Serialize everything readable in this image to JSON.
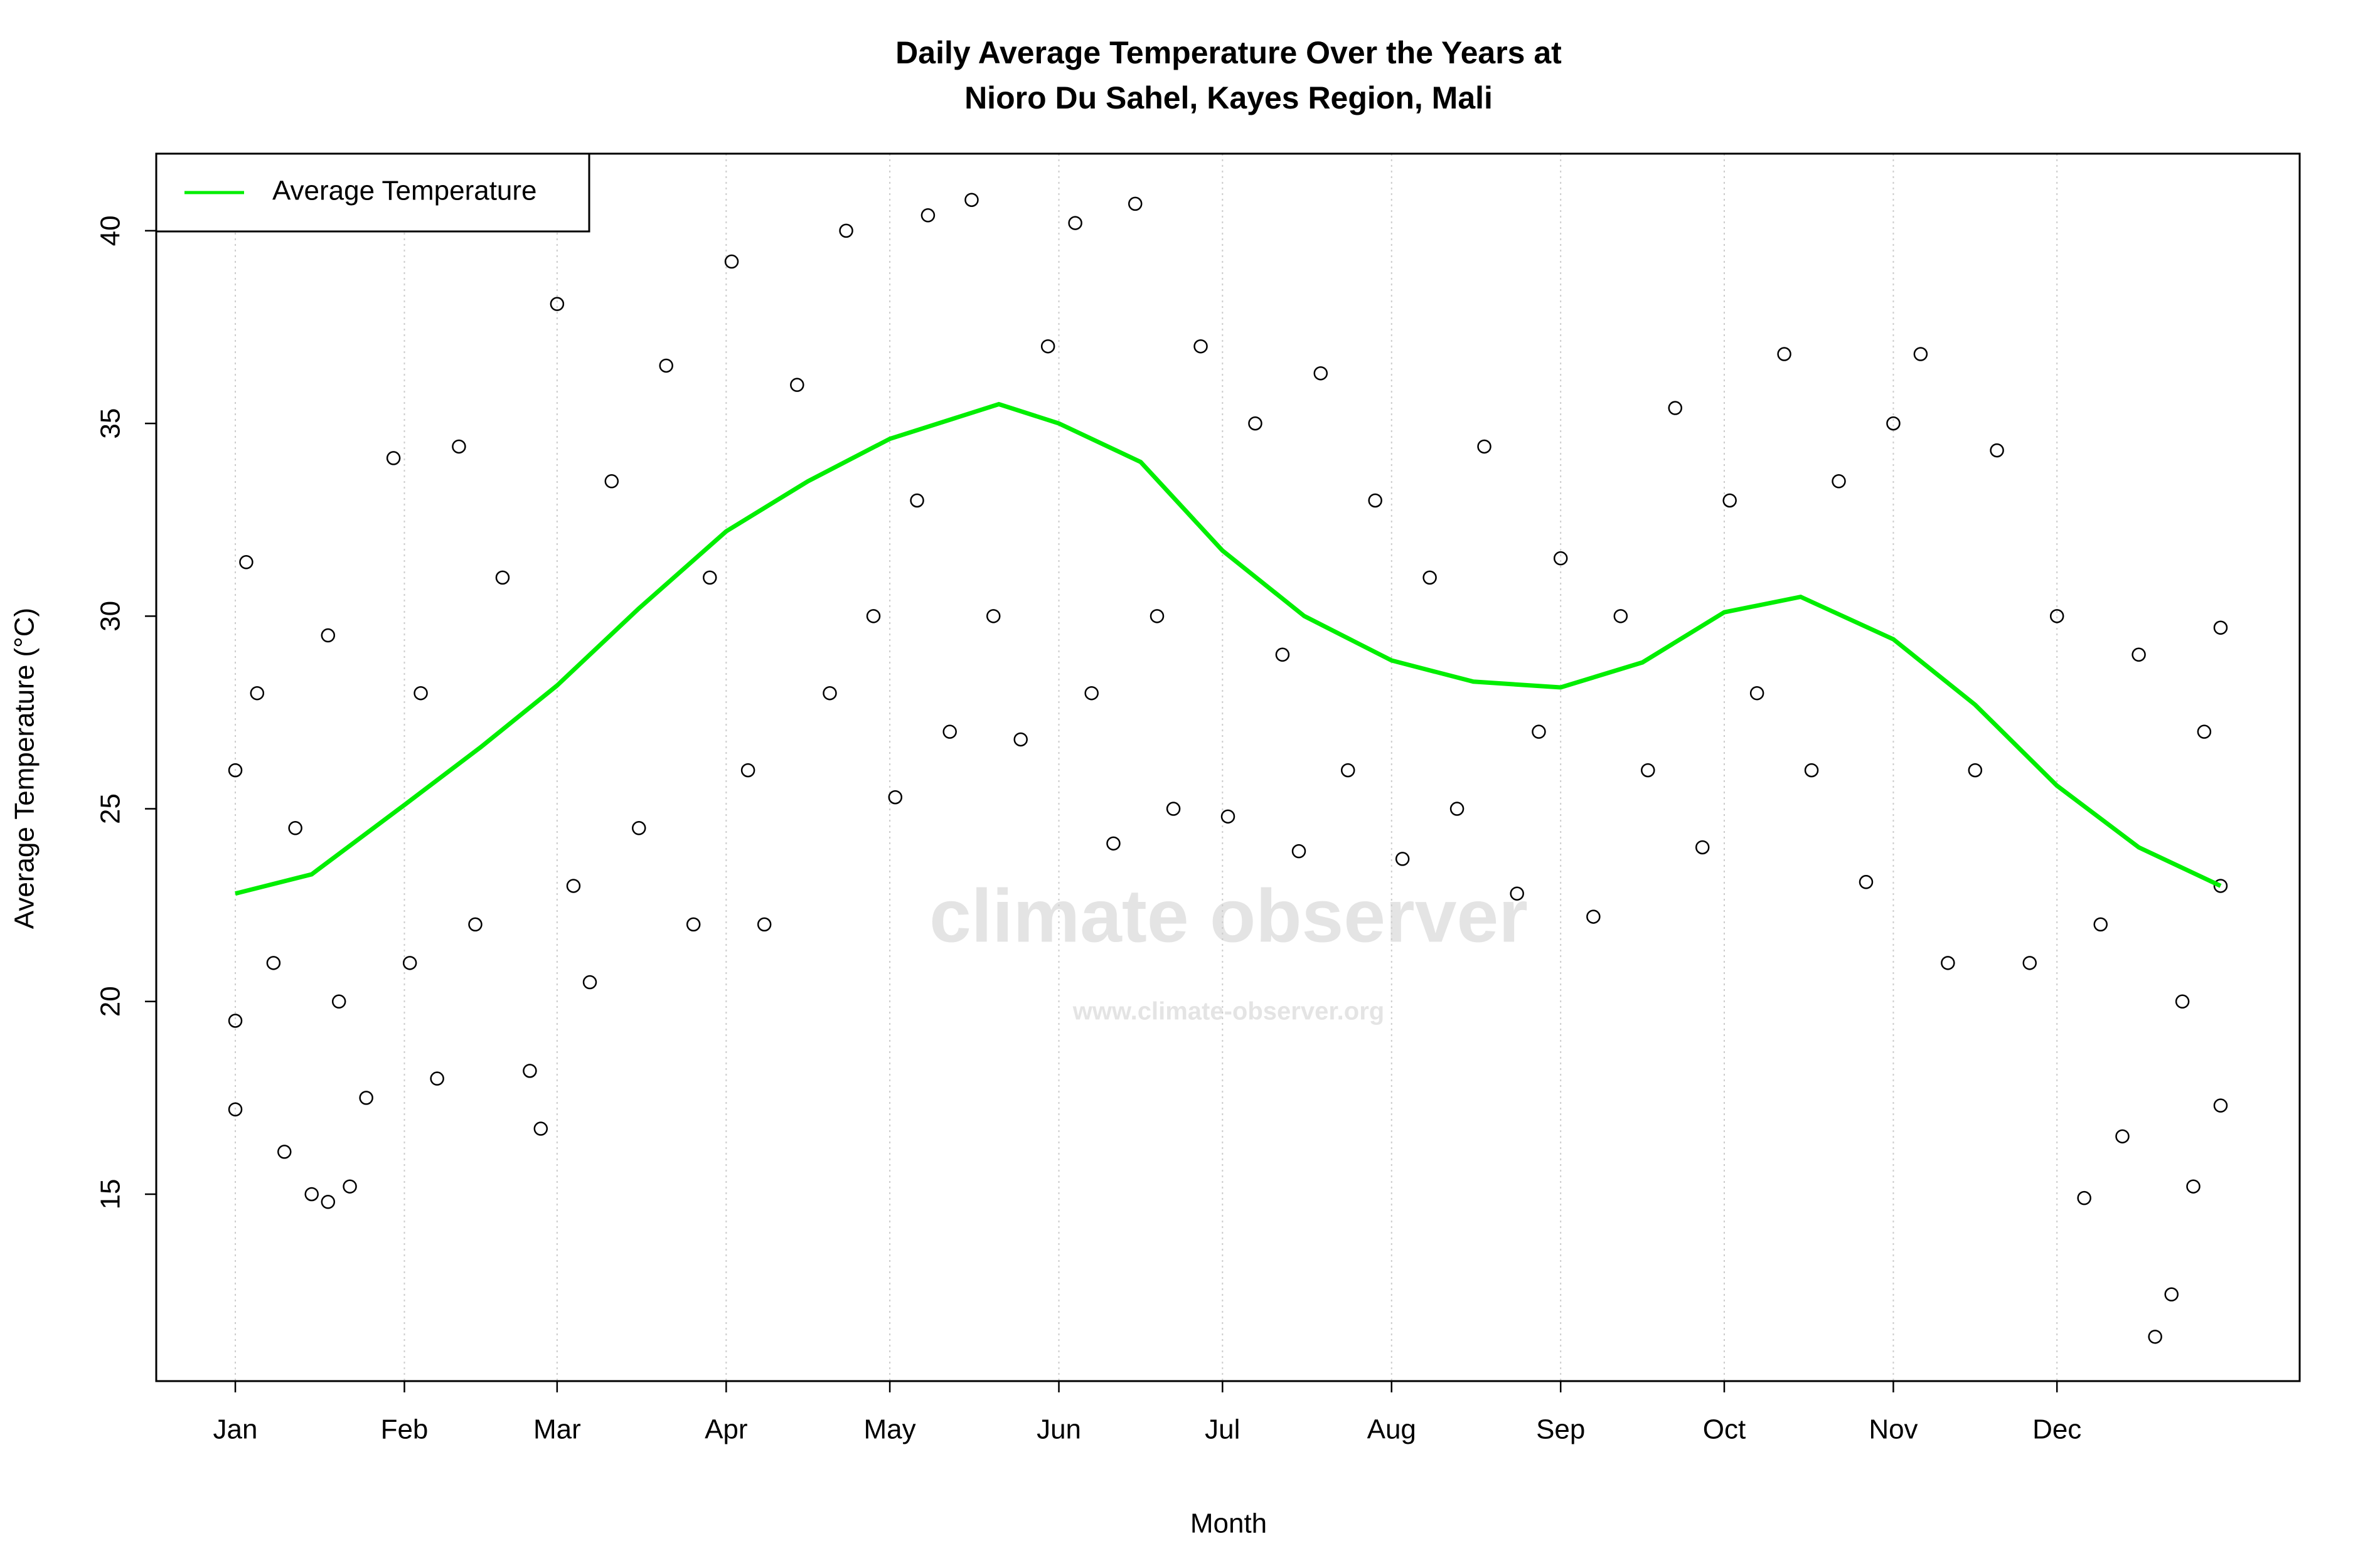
{
  "chart_data": {
    "type": "scatter",
    "title": [
      "Daily Average Temperature Over the Years at",
      "Nioro Du Sahel, Kayes Region, Mali"
    ],
    "x_label": "Month",
    "y_label": "Average Temperature (°C)",
    "watermark": {
      "name": "climate observer",
      "url": "www.climate-observer.org"
    },
    "xlim": [
      -13.5,
      379.5
    ],
    "xticks": [
      {
        "value": 1,
        "label": "Jan"
      },
      {
        "value": 32,
        "label": "Feb"
      },
      {
        "value": 60,
        "label": "Mar"
      },
      {
        "value": 91,
        "label": "Apr"
      },
      {
        "value": 121,
        "label": "May"
      },
      {
        "value": 152,
        "label": "Jun"
      },
      {
        "value": 182,
        "label": "Jul"
      },
      {
        "value": 213,
        "label": "Aug"
      },
      {
        "value": 244,
        "label": "Sep"
      },
      {
        "value": 274,
        "label": "Oct"
      },
      {
        "value": 305,
        "label": "Nov"
      },
      {
        "value": 335,
        "label": "Dec"
      }
    ],
    "ylim": [
      10.15,
      42.0
    ],
    "yticks": [
      15,
      20,
      25,
      30,
      35,
      40
    ],
    "grid": true,
    "legend": "top-left",
    "series": [
      {
        "name": "Average Temperature",
        "type": "line",
        "color": "#00ee00",
        "x": [
          1,
          15,
          32,
          46,
          60,
          75,
          91,
          106,
          121,
          141,
          152,
          167,
          182,
          197,
          213,
          228,
          244,
          259,
          274,
          288,
          305,
          320,
          335,
          350,
          365
        ],
        "values": [
          22.8,
          23.3,
          25.1,
          26.6,
          28.2,
          30.2,
          32.2,
          33.5,
          34.6,
          35.5,
          35.0,
          34.0,
          31.7,
          30.0,
          28.85,
          28.3,
          28.15,
          28.8,
          30.1,
          30.5,
          29.4,
          27.7,
          25.6,
          24.0,
          23.0
        ]
      },
      {
        "type": "scatter",
        "color": "#000000",
        "x": [
          1,
          1,
          1,
          3,
          5,
          8,
          10,
          12,
          15,
          18,
          20,
          25,
          18,
          22,
          30,
          33,
          35,
          38,
          42,
          45,
          50,
          55,
          57,
          60,
          63,
          66,
          70,
          75,
          80,
          85,
          88,
          92,
          95,
          98,
          104,
          110,
          113,
          118,
          122,
          126,
          128,
          132,
          136,
          140,
          145,
          150,
          155,
          158,
          162,
          166,
          170,
          173,
          178,
          183,
          188,
          193,
          196,
          200,
          205,
          210,
          215,
          220,
          225,
          230,
          236,
          240,
          244,
          250,
          255,
          260,
          265,
          270,
          275,
          280,
          285,
          290,
          295,
          300,
          305,
          310,
          315,
          320,
          324,
          330,
          335,
          340,
          343,
          347,
          350,
          353,
          356,
          358,
          360,
          362,
          365,
          365,
          365
        ],
        "values": [
          26.0,
          19.5,
          17.2,
          31.4,
          28.0,
          21.0,
          16.1,
          24.5,
          15.0,
          29.5,
          20.0,
          17.5,
          14.8,
          15.2,
          34.1,
          21.0,
          28.0,
          18.0,
          34.4,
          22.0,
          31.0,
          18.2,
          16.7,
          38.1,
          23.0,
          20.5,
          33.5,
          24.5,
          36.5,
          22.0,
          31.0,
          39.2,
          26.0,
          22.0,
          36.0,
          28.0,
          40.0,
          30.0,
          25.3,
          33.0,
          40.4,
          27.0,
          40.8,
          30.0,
          26.8,
          37.0,
          40.2,
          28.0,
          24.1,
          40.7,
          30.0,
          25.0,
          37.0,
          24.8,
          35.0,
          29.0,
          23.9,
          36.3,
          26.0,
          33.0,
          23.7,
          31.0,
          25.0,
          34.4,
          22.8,
          27.0,
          31.5,
          22.2,
          30.0,
          26.0,
          35.4,
          24.0,
          33.0,
          28.0,
          36.8,
          26.0,
          33.5,
          23.1,
          35.0,
          36.8,
          21.0,
          26.0,
          34.3,
          21.0,
          30.0,
          14.9,
          22.0,
          16.5,
          29.0,
          11.3,
          12.4,
          20.0,
          15.2,
          27.0,
          29.7,
          17.3,
          23.0
        ]
      }
    ]
  }
}
